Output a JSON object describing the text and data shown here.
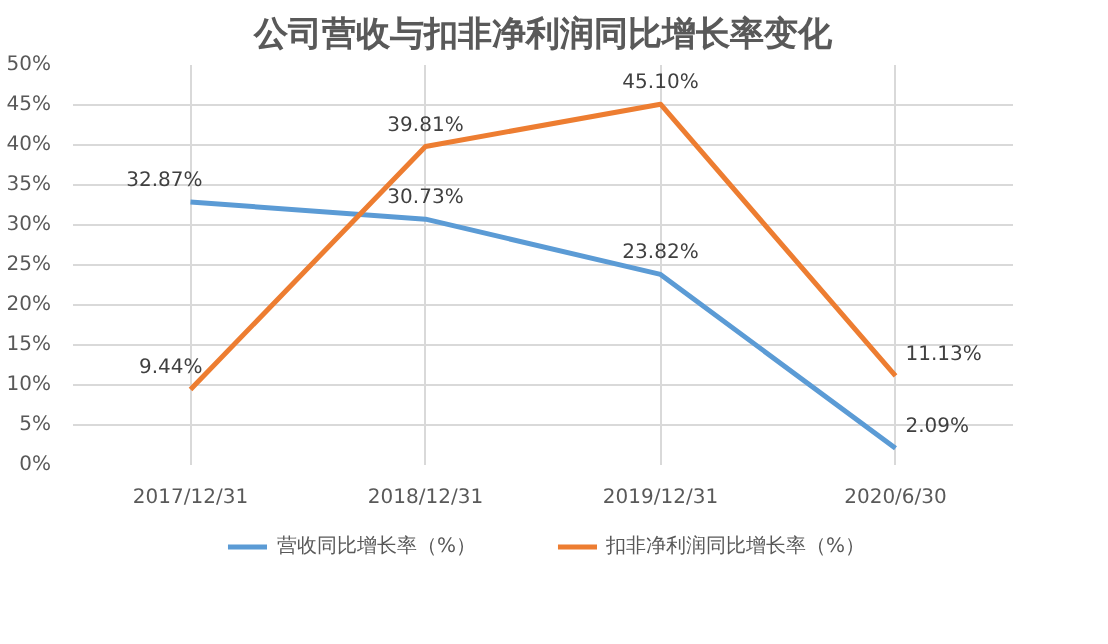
{
  "chart_data": {
    "type": "line",
    "title": "公司营收与扣非净利润同比增长率变化",
    "categories": [
      "2017/12/31",
      "2018/12/31",
      "2019/12/31",
      "2020/6/30"
    ],
    "series": [
      {
        "name": "营收同比增长率（%）",
        "color": "#5b9bd5",
        "values": [
          32.87,
          30.73,
          23.82,
          2.09
        ],
        "value_labels": [
          "32.87%",
          "30.73%",
          "23.82%",
          "2.09%"
        ]
      },
      {
        "name": "扣非净利润同比增长率（%）",
        "color": "#ed7d31",
        "values": [
          9.44,
          39.81,
          45.1,
          11.13
        ],
        "value_labels": [
          "9.44%",
          "39.81%",
          "45.10%",
          "11.13%"
        ]
      }
    ],
    "ylim": [
      0,
      50
    ],
    "yticks": [
      {
        "value": 0,
        "label": "0%"
      },
      {
        "value": 5,
        "label": "5%"
      },
      {
        "value": 10,
        "label": "10%"
      },
      {
        "value": 15,
        "label": "15%"
      },
      {
        "value": 20,
        "label": "20%"
      },
      {
        "value": 25,
        "label": "25%"
      },
      {
        "value": 30,
        "label": "30%"
      },
      {
        "value": 35,
        "label": "35%"
      },
      {
        "value": 40,
        "label": "40%"
      },
      {
        "value": 45,
        "label": "45%"
      },
      {
        "value": 50,
        "label": "50%"
      }
    ],
    "grid": true,
    "legend": "bottom",
    "marker": "none",
    "line_style": "solid"
  }
}
